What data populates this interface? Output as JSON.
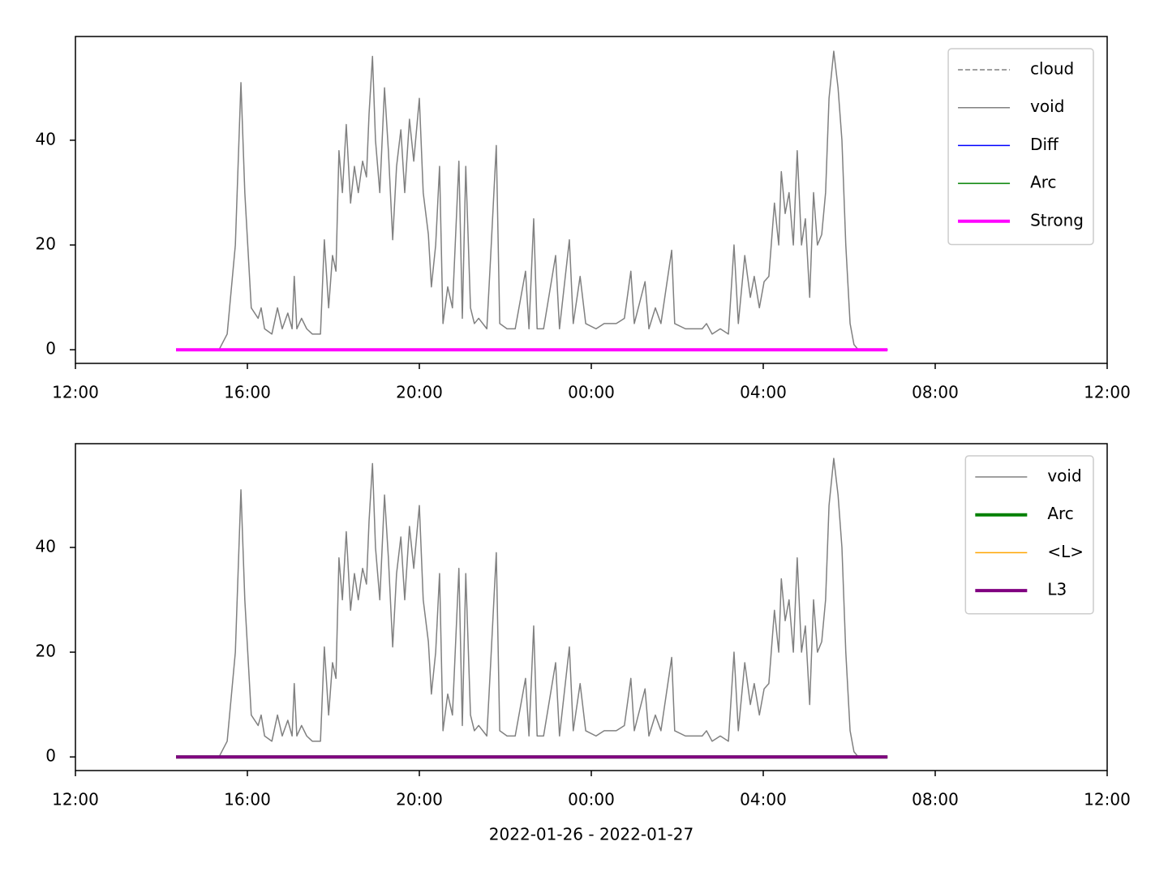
{
  "chart_data": [
    {
      "type": "line",
      "xlim": [
        0,
        24
      ],
      "ylim": [
        -2.6,
        59.8
      ],
      "xticks": [
        {
          "value": 0,
          "label": "12:00"
        },
        {
          "value": 4,
          "label": "16:00"
        },
        {
          "value": 8,
          "label": "20:00"
        },
        {
          "value": 12,
          "label": "00:00"
        },
        {
          "value": 16,
          "label": "04:00"
        },
        {
          "value": 20,
          "label": "08:00"
        },
        {
          "value": 24,
          "label": "12:00"
        }
      ],
      "yticks": [
        0,
        20,
        40
      ],
      "legend": "upper right",
      "series": [
        {
          "name": "cloud",
          "color": "#808080",
          "linewidth": 1.5,
          "dashed": true,
          "x": [
            2.34,
            18.89
          ],
          "values": [
            0,
            0
          ]
        },
        {
          "name": "void",
          "color": "#808080",
          "linewidth": 1.5,
          "dashed": false,
          "x": [
            2.34,
            3.34,
            3.53,
            3.72,
            3.85,
            3.94,
            4.09,
            4.25,
            4.32,
            4.4,
            4.57,
            4.7,
            4.81,
            4.94,
            5.04,
            5.09,
            5.15,
            5.26,
            5.38,
            5.51,
            5.7,
            5.79,
            5.89,
            5.98,
            6.06,
            6.13,
            6.21,
            6.3,
            6.4,
            6.49,
            6.58,
            6.68,
            6.77,
            6.83,
            6.91,
            6.98,
            7.08,
            7.19,
            7.28,
            7.38,
            7.47,
            7.57,
            7.66,
            7.77,
            7.87,
            8.0,
            8.09,
            8.21,
            8.28,
            8.38,
            8.47,
            8.55,
            8.66,
            8.77,
            8.92,
            9.0,
            9.08,
            9.19,
            9.28,
            9.38,
            9.57,
            9.66,
            9.79,
            9.87,
            10.04,
            10.23,
            10.47,
            10.55,
            10.66,
            10.74,
            10.89,
            11.17,
            11.26,
            11.49,
            11.58,
            11.74,
            11.87,
            12.11,
            12.3,
            12.58,
            12.77,
            12.92,
            13.0,
            13.25,
            13.34,
            13.49,
            13.62,
            13.87,
            13.94,
            14.19,
            14.38,
            14.58,
            14.68,
            14.81,
            15.0,
            15.19,
            15.32,
            15.42,
            15.57,
            15.7,
            15.79,
            15.91,
            16.02,
            16.13,
            16.26,
            16.36,
            16.42,
            16.51,
            16.6,
            16.7,
            16.79,
            16.89,
            16.98,
            17.08,
            17.17,
            17.26,
            17.36,
            17.45,
            17.53,
            17.64,
            17.74,
            17.83,
            17.92,
            18.02,
            18.11,
            18.21,
            18.89
          ],
          "values": [
            0,
            0,
            3,
            20,
            51,
            30,
            8,
            6,
            8,
            4,
            3,
            8,
            4,
            7,
            4,
            14,
            4,
            6,
            4,
            3,
            3,
            21,
            8,
            18,
            15,
            38,
            30,
            43,
            28,
            35,
            30,
            36,
            33,
            45,
            56,
            40,
            30,
            50,
            38,
            21,
            35,
            42,
            30,
            44,
            36,
            48,
            30,
            22,
            12,
            20,
            35,
            5,
            12,
            8,
            36,
            6,
            35,
            8,
            5,
            6,
            4,
            18,
            39,
            5,
            4,
            4,
            15,
            4,
            25,
            4,
            4,
            18,
            4,
            21,
            5,
            14,
            5,
            4,
            5,
            5,
            6,
            15,
            5,
            13,
            4,
            8,
            5,
            19,
            5,
            4,
            4,
            4,
            5,
            3,
            4,
            3,
            20,
            5,
            18,
            10,
            14,
            8,
            13,
            14,
            28,
            20,
            34,
            26,
            30,
            20,
            38,
            20,
            25,
            10,
            30,
            20,
            22,
            30,
            48,
            57,
            50,
            40,
            20,
            5,
            1,
            0,
            0
          ]
        },
        {
          "name": "Diff",
          "color": "#0000ff",
          "linewidth": 1.5,
          "dashed": false,
          "x": [
            2.34,
            18.89
          ],
          "values": [
            0,
            0
          ]
        },
        {
          "name": "Arc",
          "color": "#008000",
          "linewidth": 1.5,
          "dashed": false,
          "x": [
            2.34,
            18.89
          ],
          "values": [
            0,
            0
          ]
        },
        {
          "name": "Strong",
          "color": "#ff00ff",
          "linewidth": 4,
          "dashed": false,
          "x": [
            2.34,
            18.89
          ],
          "values": [
            0,
            0
          ]
        }
      ]
    },
    {
      "type": "line",
      "xlim": [
        0,
        24
      ],
      "ylim": [
        -2.6,
        59.8
      ],
      "xticks": [
        {
          "value": 0,
          "label": "12:00"
        },
        {
          "value": 4,
          "label": "16:00"
        },
        {
          "value": 8,
          "label": "20:00"
        },
        {
          "value": 12,
          "label": "00:00"
        },
        {
          "value": 16,
          "label": "04:00"
        },
        {
          "value": 20,
          "label": "08:00"
        },
        {
          "value": 24,
          "label": "12:00"
        }
      ],
      "yticks": [
        0,
        20,
        40
      ],
      "legend": "upper right",
      "xlabel": "2022-01-26 - 2022-01-27",
      "series": [
        {
          "name": "void",
          "color": "#808080",
          "linewidth": 1.5,
          "dashed": false,
          "x": [
            2.34,
            3.34,
            3.53,
            3.72,
            3.85,
            3.94,
            4.09,
            4.25,
            4.32,
            4.4,
            4.57,
            4.7,
            4.81,
            4.94,
            5.04,
            5.09,
            5.15,
            5.26,
            5.38,
            5.51,
            5.7,
            5.79,
            5.89,
            5.98,
            6.06,
            6.13,
            6.21,
            6.3,
            6.4,
            6.49,
            6.58,
            6.68,
            6.77,
            6.83,
            6.91,
            6.98,
            7.08,
            7.19,
            7.28,
            7.38,
            7.47,
            7.57,
            7.66,
            7.77,
            7.87,
            8.0,
            8.09,
            8.21,
            8.28,
            8.38,
            8.47,
            8.55,
            8.66,
            8.77,
            8.92,
            9.0,
            9.08,
            9.19,
            9.28,
            9.38,
            9.57,
            9.66,
            9.79,
            9.87,
            10.04,
            10.23,
            10.47,
            10.55,
            10.66,
            10.74,
            10.89,
            11.17,
            11.26,
            11.49,
            11.58,
            11.74,
            11.87,
            12.11,
            12.3,
            12.58,
            12.77,
            12.92,
            13.0,
            13.25,
            13.34,
            13.49,
            13.62,
            13.87,
            13.94,
            14.19,
            14.38,
            14.58,
            14.68,
            14.81,
            15.0,
            15.19,
            15.32,
            15.42,
            15.57,
            15.7,
            15.79,
            15.91,
            16.02,
            16.13,
            16.26,
            16.36,
            16.42,
            16.51,
            16.6,
            16.7,
            16.79,
            16.89,
            16.98,
            17.08,
            17.17,
            17.26,
            17.36,
            17.45,
            17.53,
            17.64,
            17.74,
            17.83,
            17.92,
            18.02,
            18.11,
            18.21,
            18.89
          ],
          "values": [
            0,
            0,
            3,
            20,
            51,
            30,
            8,
            6,
            8,
            4,
            3,
            8,
            4,
            7,
            4,
            14,
            4,
            6,
            4,
            3,
            3,
            21,
            8,
            18,
            15,
            38,
            30,
            43,
            28,
            35,
            30,
            36,
            33,
            45,
            56,
            40,
            30,
            50,
            38,
            21,
            35,
            42,
            30,
            44,
            36,
            48,
            30,
            22,
            12,
            20,
            35,
            5,
            12,
            8,
            36,
            6,
            35,
            8,
            5,
            6,
            4,
            18,
            39,
            5,
            4,
            4,
            15,
            4,
            25,
            4,
            4,
            18,
            4,
            21,
            5,
            14,
            5,
            4,
            5,
            5,
            6,
            15,
            5,
            13,
            4,
            8,
            5,
            19,
            5,
            4,
            4,
            4,
            5,
            3,
            4,
            3,
            20,
            5,
            18,
            10,
            14,
            8,
            13,
            14,
            28,
            20,
            34,
            26,
            30,
            20,
            38,
            20,
            25,
            10,
            30,
            20,
            22,
            30,
            48,
            57,
            50,
            40,
            20,
            5,
            1,
            0,
            0
          ]
        },
        {
          "name": "Arc",
          "color": "#008000",
          "linewidth": 4,
          "dashed": false,
          "x": [
            2.34,
            18.89
          ],
          "values": [
            0,
            0
          ]
        },
        {
          "name": "<L>",
          "color": "#ffa500",
          "linewidth": 1.5,
          "dashed": false,
          "x": [
            2.34,
            18.89
          ],
          "values": [
            0,
            0
          ]
        },
        {
          "name": "L3",
          "color": "#800080",
          "linewidth": 4,
          "dashed": false,
          "x": [
            2.34,
            18.89
          ],
          "values": [
            0,
            0
          ]
        }
      ]
    }
  ]
}
